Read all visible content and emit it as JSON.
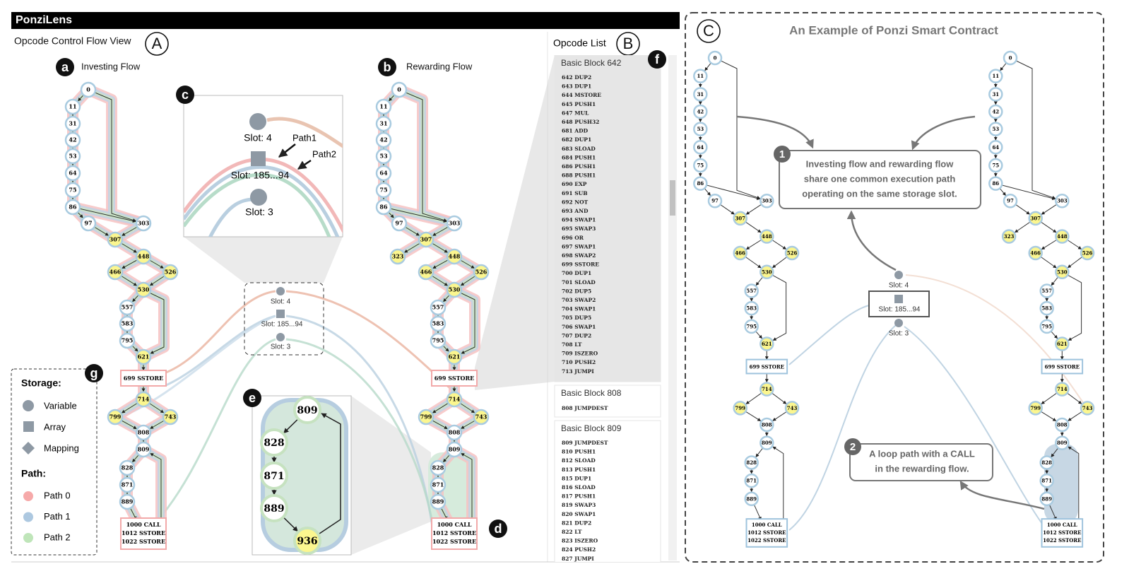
{
  "header": {
    "title": "PonziLens"
  },
  "control_flow_view": {
    "title": "Opcode Control Flow View",
    "badge": "A",
    "investing_flow": {
      "badge": "a",
      "title": "Investing Flow",
      "nodes": [
        {
          "label": "0"
        },
        {
          "label": "11"
        },
        {
          "label": "31"
        },
        {
          "label": "42"
        },
        {
          "label": "53"
        },
        {
          "label": "64"
        },
        {
          "label": "75"
        },
        {
          "label": "86"
        },
        {
          "label": "97"
        },
        {
          "label": "303"
        },
        {
          "label": "307",
          "fill": "#fbf68f"
        },
        {
          "label": "448",
          "fill": "#fbf68f"
        },
        {
          "label": "466",
          "fill": "#fbf68f"
        },
        {
          "label": "526",
          "fill": "#fbf68f"
        },
        {
          "label": "530",
          "fill": "#fbf68f"
        },
        {
          "label": "557"
        },
        {
          "label": "583"
        },
        {
          "label": "795"
        },
        {
          "label": "621",
          "fill": "#fbf68f"
        },
        {
          "label": "699 SSTORE",
          "shape": "box"
        },
        {
          "label": "714",
          "fill": "#fbf68f"
        },
        {
          "label": "799",
          "fill": "#fbf68f"
        },
        {
          "label": "743",
          "fill": "#fbf68f"
        },
        {
          "label": "808"
        },
        {
          "label": "809"
        },
        {
          "label": "828"
        },
        {
          "label": "871"
        },
        {
          "label": "889"
        },
        {
          "lines": [
            "1000 CALL",
            "1012 SSTORE",
            "1022 SSTORE"
          ],
          "shape": "box"
        }
      ]
    },
    "rewarding_flow": {
      "badge": "b",
      "title": "Rewarding Flow",
      "nodes": [
        {
          "label": "0"
        },
        {
          "label": "11"
        },
        {
          "label": "31"
        },
        {
          "label": "42"
        },
        {
          "label": "53"
        },
        {
          "label": "64"
        },
        {
          "label": "75"
        },
        {
          "label": "86"
        },
        {
          "label": "97"
        },
        {
          "label": "303"
        },
        {
          "label": "307",
          "fill": "#fbf68f"
        },
        {
          "label": "448",
          "fill": "#fbf68f"
        },
        {
          "label": "466",
          "fill": "#fbf68f"
        },
        {
          "label": "526",
          "fill": "#fbf68f"
        },
        {
          "label": "530",
          "fill": "#fbf68f"
        },
        {
          "label": "557"
        },
        {
          "label": "583"
        },
        {
          "label": "795"
        },
        {
          "label": "621",
          "fill": "#fbf68f"
        },
        {
          "label": "699 SSTORE",
          "shape": "box"
        },
        {
          "label": "714",
          "fill": "#fbf68f"
        },
        {
          "label": "799",
          "fill": "#fbf68f"
        },
        {
          "label": "743",
          "fill": "#fbf68f"
        },
        {
          "label": "808"
        },
        {
          "label": "809"
        },
        {
          "label": "828"
        },
        {
          "label": "871"
        },
        {
          "label": "889"
        },
        {
          "lines": [
            "1000 CALL",
            "1012 SSTORE",
            "1022 SSTORE"
          ],
          "shape": "box"
        },
        {
          "label": "323",
          "fill": "#fbf68f"
        }
      ]
    },
    "zoom_storage": {
      "badge": "c",
      "slots": [
        "Slot: 4",
        "Slot: 185...94",
        "Slot: 3"
      ],
      "paths": [
        "Path1",
        "Path2"
      ]
    },
    "storage": {
      "slots": [
        "Slot: 4",
        "Slot: 185...94",
        "Slot: 3"
      ]
    },
    "zoom_loop": {
      "badge": "e",
      "nodes": [
        {
          "label": "809"
        },
        {
          "label": "828"
        },
        {
          "label": "871"
        },
        {
          "label": "889"
        },
        {
          "label": "936",
          "fill": "#fbf68f"
        }
      ]
    },
    "loop_badge": "d",
    "legend": {
      "badge": "g",
      "storage_title": "Storage:",
      "storage_items": [
        "Variable",
        "Array",
        "Mapping"
      ],
      "path_title": "Path:",
      "path_items": [
        {
          "label": "Path 0",
          "color": "#f6a9a9"
        },
        {
          "label": "Path 1",
          "color": "#adc8e0"
        },
        {
          "label": "Path 2",
          "color": "#bfe5b9"
        }
      ]
    }
  },
  "opcode_list": {
    "title": "Opcode List",
    "badge": "B",
    "scroll_badge": "f",
    "blocks": [
      {
        "title": "Basic Block 642",
        "items": [
          "642 DUP2",
          "643 DUP1",
          "644 MSTORE",
          "645 PUSH1",
          "647 MUL",
          "648 PUSH32",
          "681 ADD",
          "682 DUP1",
          "683 SLOAD",
          "684 PUSH1",
          "686 PUSH1",
          "688 PUSH1",
          "690 EXP",
          "691 SUB",
          "692 NOT",
          "693 AND",
          "694 SWAP1",
          "695 SWAP3",
          "696 OR",
          "697 SWAP1",
          "698 SWAP2",
          "699 SSTORE",
          "700 DUP1",
          "701 SLOAD",
          "702 DUP5",
          "703 SWAP2",
          "704 SWAP1",
          "705 DUP5",
          "706 SWAP1",
          "707 DUP2",
          "708 LT",
          "709 ISZERO",
          "710 PUSH2",
          "713 JUMPI"
        ]
      },
      {
        "title": "Basic Block 808",
        "items": [
          "808 JUMPDEST"
        ]
      },
      {
        "title": "Basic Block 809",
        "items": [
          "809 JUMPDEST",
          "810 PUSH1",
          "812 SLOAD",
          "813 PUSH1",
          "815 DUP1",
          "816 SLOAD",
          "817 PUSH1",
          "819 SWAP3",
          "820 SWAP1",
          "821 DUP2",
          "822 LT",
          "823 ISZERO",
          "824 PUSH2",
          "827 JUMPI"
        ]
      }
    ]
  },
  "example": {
    "title": "An Example of Ponzi Smart Contract",
    "badge": "C",
    "annotations": [
      {
        "number": "1",
        "lines": [
          "Investing flow and rewarding flow",
          "share one common execution path",
          "operating on the same storage slot."
        ]
      },
      {
        "number": "2",
        "lines": [
          "A loop path with a CALL",
          "in the rewarding flow."
        ]
      }
    ]
  }
}
